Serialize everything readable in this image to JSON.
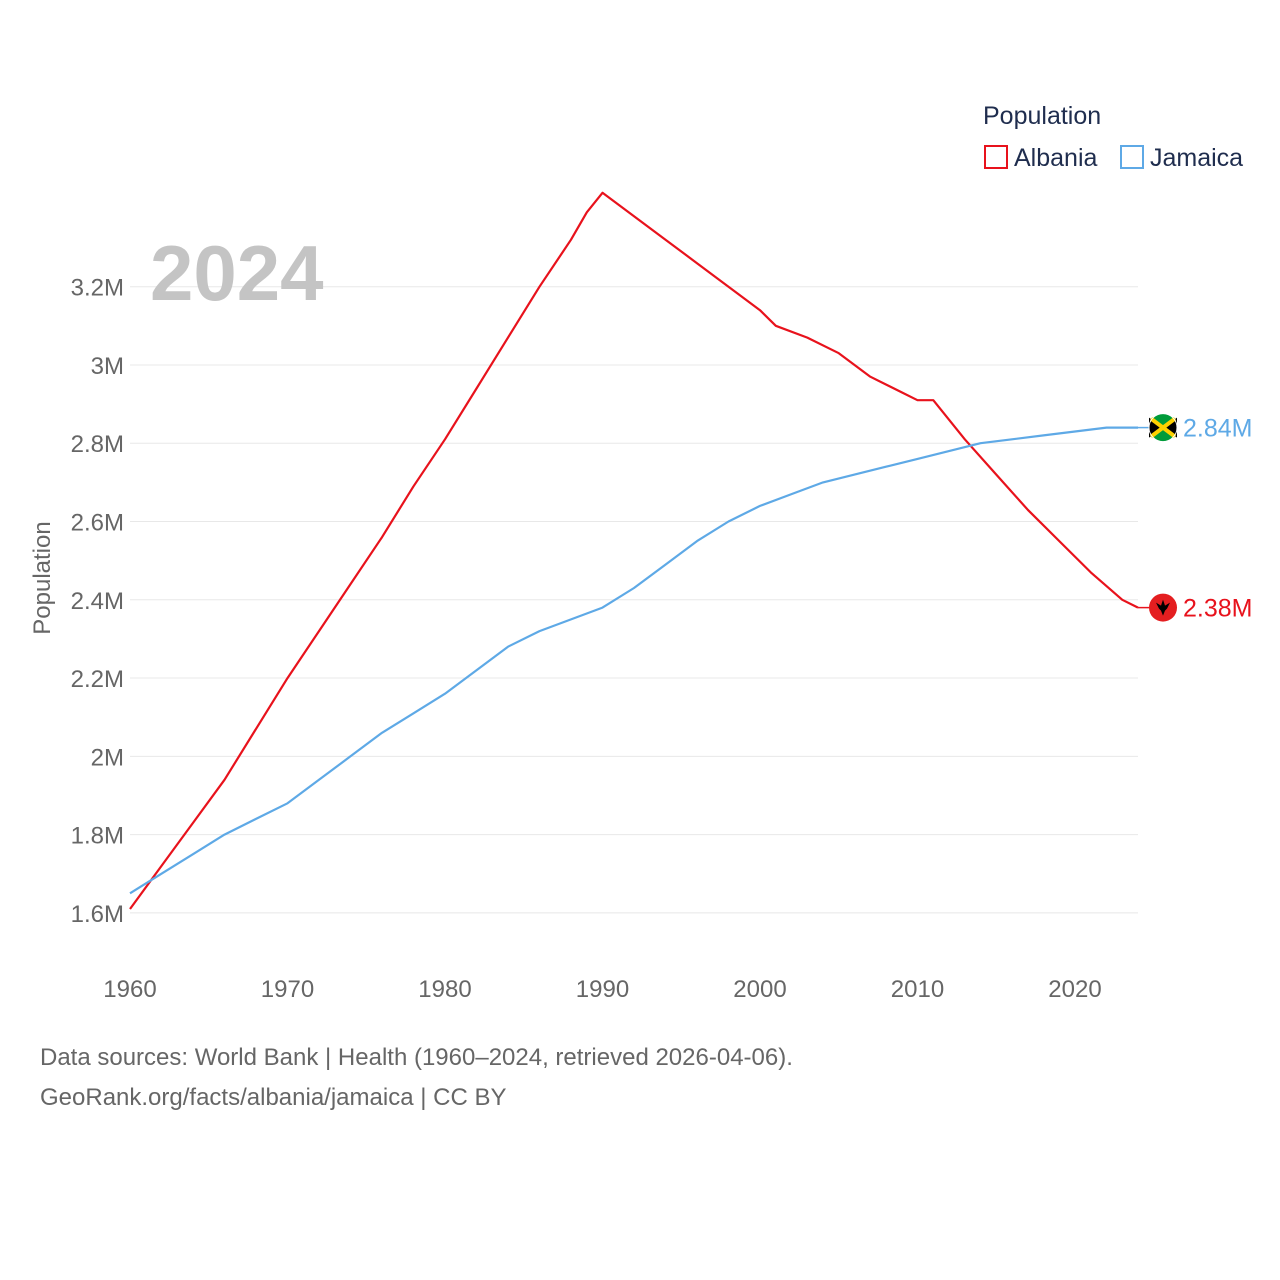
{
  "chart_data": {
    "type": "line",
    "year_label": "2024",
    "ylabel": "Population",
    "xlabel": "",
    "xlim": [
      1960,
      2024
    ],
    "ylim": [
      1.5,
      3.35
    ],
    "x_ticks": [
      1960,
      1970,
      1980,
      1990,
      2000,
      2010,
      2020
    ],
    "x_tick_labels": [
      "1960",
      "1970",
      "1980",
      "1990",
      "2000",
      "2010",
      "2020"
    ],
    "y_ticks": [
      1.6,
      1.8,
      2.0,
      2.2,
      2.4,
      2.6,
      2.8,
      3.0,
      3.2
    ],
    "y_tick_labels": [
      "1.6M",
      "1.8M",
      "2M",
      "2.2M",
      "2.4M",
      "2.6M",
      "2.8M",
      "3M",
      "3.2M"
    ],
    "legend": {
      "title": "Population",
      "items": [
        {
          "name": "Albania",
          "color": "#e8121c"
        },
        {
          "name": "Jamaica",
          "color": "#5ea9e6"
        }
      ]
    },
    "series": [
      {
        "name": "Albania",
        "color": "#e8121c",
        "end_label": "2.38M",
        "flag_icon": "albania-flag-icon",
        "x": [
          1960,
          1962,
          1964,
          1966,
          1968,
          1970,
          1972,
          1974,
          1976,
          1978,
          1980,
          1982,
          1984,
          1986,
          1988,
          1989,
          1990,
          1992,
          1994,
          1996,
          1998,
          2000,
          2001,
          2003,
          2005,
          2007,
          2009,
          2010,
          2011,
          2013,
          2015,
          2017,
          2019,
          2021,
          2023,
          2024
        ],
        "values": [
          1.61,
          1.72,
          1.83,
          1.94,
          2.07,
          2.2,
          2.32,
          2.44,
          2.56,
          2.69,
          2.81,
          2.94,
          3.07,
          3.2,
          3.32,
          3.39,
          3.44,
          3.38,
          3.32,
          3.26,
          3.2,
          3.14,
          3.1,
          3.07,
          3.03,
          2.97,
          2.93,
          2.91,
          2.91,
          2.81,
          2.72,
          2.63,
          2.55,
          2.47,
          2.4,
          2.38
        ]
      },
      {
        "name": "Jamaica",
        "color": "#5ea9e6",
        "end_label": "2.84M",
        "flag_icon": "jamaica-flag-icon",
        "x": [
          1960,
          1962,
          1964,
          1966,
          1968,
          1970,
          1972,
          1974,
          1976,
          1978,
          1980,
          1982,
          1984,
          1986,
          1988,
          1990,
          1992,
          1994,
          1996,
          1998,
          2000,
          2002,
          2004,
          2006,
          2008,
          2010,
          2012,
          2014,
          2016,
          2018,
          2020,
          2022,
          2024
        ],
        "values": [
          1.65,
          1.7,
          1.75,
          1.8,
          1.84,
          1.88,
          1.94,
          2.0,
          2.06,
          2.11,
          2.16,
          2.22,
          2.28,
          2.32,
          2.35,
          2.38,
          2.43,
          2.49,
          2.55,
          2.6,
          2.64,
          2.67,
          2.7,
          2.72,
          2.74,
          2.76,
          2.78,
          2.8,
          2.81,
          2.82,
          2.83,
          2.84,
          2.84
        ]
      }
    ]
  },
  "footer": {
    "line1": "Data sources: World Bank | Health (1960–2024, retrieved 2026-04-06).",
    "line2": "GeoRank.org/facts/albania/jamaica | CC BY"
  }
}
